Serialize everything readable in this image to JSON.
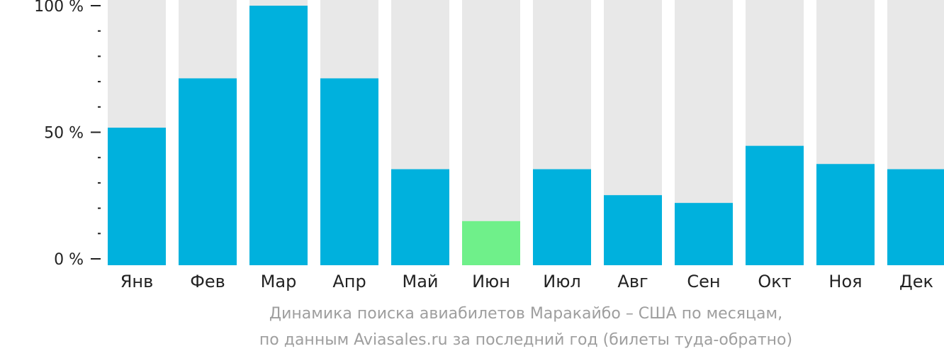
{
  "chart_data": {
    "type": "bar",
    "categories": [
      "Янв",
      "Фев",
      "Мар",
      "Апр",
      "Май",
      "Июн",
      "Июл",
      "Авг",
      "Сен",
      "Окт",
      "Ноя",
      "Дек"
    ],
    "values": [
      53,
      72,
      100,
      72,
      37,
      17,
      37,
      27,
      24,
      46,
      39,
      37
    ],
    "highlight_index": 5,
    "ylim": [
      0,
      100
    ],
    "y_ticks": [
      "0 %",
      "50 %",
      "100 %"
    ],
    "y_tick_values": [
      0,
      50,
      100
    ],
    "minor_ticks_between": 4,
    "grid": false,
    "colors": {
      "bar": "#00b1dd",
      "highlight": "#6ff08a",
      "background_track": "#e8e8e8",
      "axis": "#222222"
    }
  },
  "caption": {
    "line1": "Динамика поиска авиабилетов Маракайбо – США по месяцам,",
    "line2": "по данным Aviasales.ru за последний год (билеты туда-обратно)"
  }
}
